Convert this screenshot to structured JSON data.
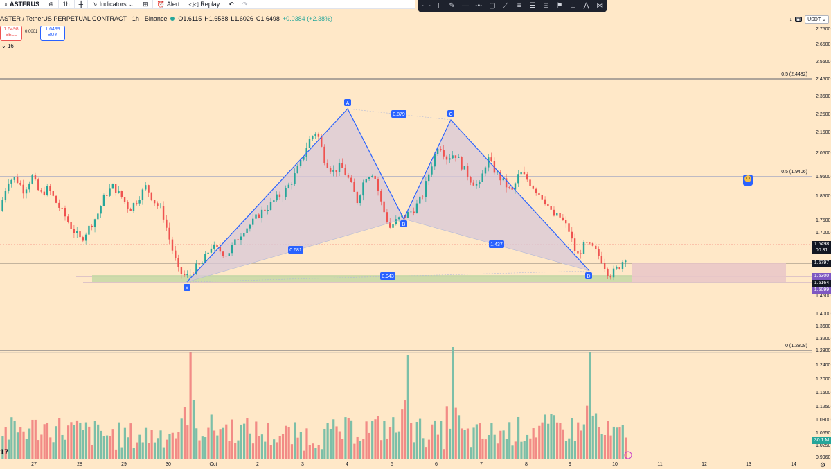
{
  "topbar": {
    "symbol": "ASTERUS",
    "interval": "1h",
    "indicators_label": "Indicators",
    "alert_label": "Alert",
    "replay_label": "Replay"
  },
  "legend": {
    "title": "ASTER / TetherUS PERPETUAL CONTRACT · 1h · Binance",
    "open": "O1.6115",
    "high": "H1.6588",
    "low": "L1.6026",
    "close": "C1.6498",
    "change": "+0.0384 (+2.38%)"
  },
  "trade": {
    "sell_price": "1.6498",
    "sell_label": "SELL",
    "spread": "0.0001",
    "buy_price": "1.6499",
    "buy_label": "BUY"
  },
  "indicator_count": "16",
  "currency": "USDT",
  "price_ticks": [
    "2.7500",
    "2.6500",
    "2.5500",
    "2.4500",
    "2.3500",
    "2.2500",
    "2.1500",
    "2.0500",
    "1.9500",
    "1.8500",
    "1.7500",
    "1.7000",
    "1.4600",
    "1.4000",
    "1.3600",
    "1.3200",
    "1.2800",
    "1.2400",
    "1.2000",
    "1.1600",
    "1.1250",
    "1.0900",
    "1.0550",
    "1.0250",
    "0.9960"
  ],
  "price_tags": {
    "current": "1.6498",
    "countdown": "00:31",
    "level1": "1.5797",
    "level2": "1.5300",
    "level3": "1.5164",
    "level4": "1.5099",
    "volume": "30.1 M"
  },
  "fib_labels": {
    "upper": "0.5 (2.4482)",
    "middle": "0.5 (1.9406)",
    "lower": "0 (1.2808)"
  },
  "pattern": {
    "points": [
      "X",
      "A",
      "B",
      "C",
      "D"
    ],
    "ratios": [
      "0.879",
      "0.681",
      "1.437",
      "0.943"
    ]
  },
  "time_labels": [
    "27",
    "28",
    "29",
    "30",
    "Oct",
    "2",
    "3",
    "4",
    "5",
    "6",
    "7",
    "8",
    "9",
    "10",
    "11",
    "12",
    "13",
    "14"
  ],
  "colors": {
    "background": "#ffe8c8",
    "bull": "#26a69a",
    "bear": "#ef5350",
    "pattern_line": "#2962ff",
    "pattern_fill": "#d8c8d8",
    "zone_green": "#c5d8a4",
    "zone_pink": "#e9c6c8"
  },
  "chart_data": {
    "type": "candlestick",
    "price_range": [
      1.46,
      2.75
    ],
    "pattern_prices": {
      "X": 1.507,
      "A": 2.27,
      "B": 1.755,
      "C": 2.22,
      "D": 1.565
    },
    "close_path": [
      1.87,
      2.02,
      2.03,
      1.97,
      2.04,
      1.95,
      1.98,
      1.91,
      1.85,
      1.78,
      1.73,
      1.79,
      1.85,
      1.95,
      1.99,
      1.94,
      1.88,
      1.93,
      1.99,
      1.92,
      1.87,
      1.72,
      1.58,
      1.55,
      1.59,
      1.62,
      1.7,
      1.68,
      1.66,
      1.72,
      1.78,
      1.81,
      1.86,
      1.89,
      1.93,
      1.96,
      2.02,
      2.1,
      2.21,
      2.26,
      2.12,
      2.06,
      2.09,
      2.02,
      1.92,
      2.04,
      2.06,
      1.9,
      1.79,
      1.83,
      1.85,
      1.88,
      1.94,
      2.08,
      2.2,
      2.13,
      2.15,
      2.08,
      2.02,
      1.99,
      2.13,
      2.06,
      2.01,
      1.96,
      2.06,
      2.02,
      1.97,
      1.93,
      1.85,
      1.84,
      1.78,
      1.65,
      1.71,
      1.69,
      1.64,
      1.56,
      1.59,
      1.65
    ],
    "volume_spikes": [
      {
        "day": "30",
        "relative": 1.0
      },
      {
        "day": "5",
        "relative": 1.0
      },
      {
        "day": "6",
        "relative": 1.1
      },
      {
        "day": "9",
        "relative": 1.0
      }
    ]
  }
}
